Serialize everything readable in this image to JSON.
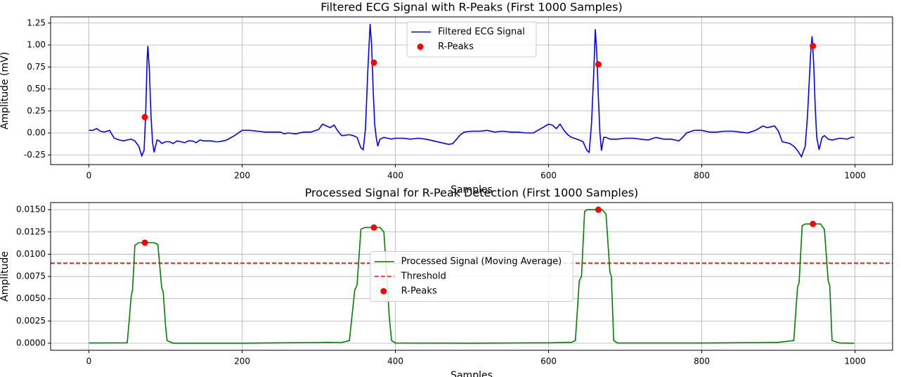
{
  "chart_data": [
    {
      "type": "line",
      "title": "Filtered ECG Signal with R-Peaks (First 1000 Samples)",
      "xlabel": "Samples",
      "ylabel": "Amplitude (mV)",
      "xlim": [
        -50,
        1049
      ],
      "ylim": [
        -0.36,
        1.32
      ],
      "xticks": [
        0,
        200,
        400,
        600,
        800,
        1000
      ],
      "yticks": [
        -0.25,
        {
          "value": 0,
          "label": "0.00"
        },
        0.25,
        {
          "value": 0.5,
          "label": "0.50"
        },
        0.75,
        {
          "value": 1,
          "label": "1.00"
        },
        1.25
      ],
      "grid": true,
      "legend": "upper center",
      "series": [
        {
          "name": "Filtered ECG Signal",
          "color": "#0000ff",
          "style": "line",
          "x": [
            0,
            5,
            10,
            15,
            20,
            27,
            33,
            40,
            45,
            50,
            55,
            60,
            65,
            69,
            72,
            74,
            76,
            77,
            79,
            81,
            83,
            85,
            87,
            89,
            92,
            95,
            100,
            105,
            110,
            115,
            120,
            125,
            130,
            135,
            140,
            145,
            150,
            160,
            165,
            170,
            175,
            180,
            190,
            200,
            210,
            220,
            230,
            240,
            250,
            255,
            260,
            270,
            280,
            290,
            300,
            305,
            310,
            315,
            320,
            325,
            330,
            340,
            345,
            350,
            355,
            358,
            361,
            364,
            367,
            369,
            371,
            373,
            375,
            377,
            380,
            385,
            390,
            395,
            400,
            410,
            420,
            430,
            440,
            450,
            460,
            470,
            475,
            485,
            490,
            500,
            510,
            520,
            530,
            540,
            550,
            560,
            570,
            580,
            590,
            600,
            605,
            610,
            615,
            620,
            625,
            630,
            640,
            645,
            650,
            653,
            656,
            659,
            661,
            663,
            665,
            667,
            669,
            672,
            675,
            680,
            690,
            700,
            710,
            720,
            730,
            740,
            750,
            760,
            770,
            775,
            780,
            790,
            800,
            810,
            820,
            830,
            840,
            850,
            860,
            870,
            880,
            885,
            890,
            895,
            900,
            905,
            915,
            920,
            925,
            930,
            935,
            938,
            942,
            944,
            946,
            948,
            950,
            953,
            957,
            960,
            965,
            970,
            980,
            990,
            995,
            999
          ],
          "values": [
            0.03,
            0.03,
            0.05,
            0.02,
            0.01,
            0.03,
            -0.06,
            -0.08,
            -0.09,
            -0.08,
            -0.07,
            -0.09,
            -0.15,
            -0.26,
            -0.2,
            0.2,
            0.85,
            0.99,
            0.7,
            0.2,
            -0.1,
            -0.22,
            -0.15,
            -0.08,
            -0.09,
            -0.12,
            -0.1,
            -0.1,
            -0.12,
            -0.09,
            -0.1,
            -0.11,
            -0.09,
            -0.09,
            -0.11,
            -0.08,
            -0.09,
            -0.09,
            -0.1,
            -0.1,
            -0.09,
            -0.08,
            -0.03,
            0.03,
            0.03,
            0.02,
            0.01,
            0.01,
            0.01,
            -0.01,
            0,
            -0.01,
            0.01,
            0.01,
            0.04,
            0.1,
            0.08,
            0.06,
            0.09,
            0.02,
            -0.03,
            -0.02,
            -0.03,
            -0.05,
            -0.17,
            -0.19,
            0.05,
            0.7,
            1.24,
            1,
            0.5,
            0.1,
            -0.05,
            -0.15,
            -0.07,
            -0.05,
            -0.06,
            -0.07,
            -0.06,
            -0.06,
            -0.07,
            -0.06,
            -0.07,
            -0.09,
            -0.11,
            -0.13,
            -0.12,
            -0.02,
            0.01,
            0.02,
            0.02,
            0.03,
            0.01,
            0.02,
            0.01,
            0.01,
            0,
            0,
            0.05,
            0.1,
            0.09,
            0.05,
            0.1,
            0.03,
            -0.02,
            -0.05,
            -0.08,
            -0.1,
            -0.2,
            -0.22,
            0.1,
            0.7,
            1.18,
            0.9,
            0.4,
            0,
            -0.2,
            -0.05,
            -0.05,
            -0.07,
            -0.07,
            -0.06,
            -0.06,
            -0.07,
            -0.08,
            -0.05,
            -0.07,
            -0.07,
            -0.09,
            -0.05,
            0,
            0.03,
            0.03,
            0.01,
            0.01,
            0.02,
            0.02,
            0.01,
            0,
            0.03,
            0.08,
            0.06,
            0.07,
            0.08,
            0.02,
            -0.1,
            -0.12,
            -0.15,
            -0.2,
            -0.27,
            -0.15,
            0.2,
            0.9,
            1.1,
            0.8,
            0.3,
            -0.05,
            -0.19,
            -0.05,
            -0.03,
            -0.07,
            -0.08,
            -0.06,
            -0.07,
            -0.05,
            -0.05
          ]
        },
        {
          "name": "R-Peaks",
          "color": "#ff0000",
          "style": "markers",
          "x": [
            73,
            372,
            665,
            945
          ],
          "values": [
            0.18,
            0.8,
            0.78,
            0.99
          ]
        }
      ]
    },
    {
      "type": "line",
      "title": "Processed Signal for R-Peak Detection (First 1000 Samples)",
      "xlabel": "Samples",
      "ylabel": "Amplitude",
      "xlim": [
        -50,
        1049
      ],
      "ylim": [
        -0.00079,
        0.0158
      ],
      "xticks": [
        0,
        200,
        400,
        600,
        800,
        1000
      ],
      "yticks": [
        {
          "value": 0,
          "label": "0.0000"
        },
        0.0025,
        {
          "value": 0.005,
          "label": "0.0050"
        },
        0.0075,
        {
          "value": 0.01,
          "label": "0.0100"
        },
        0.0125,
        {
          "value": 0.015,
          "label": "0.0150"
        }
      ],
      "grid": true,
      "legend": "center",
      "series": [
        {
          "name": "Processed Signal (Moving Average)",
          "color": "#008000",
          "style": "line",
          "x": [
            0,
            50,
            53,
            55,
            57,
            60,
            65,
            85,
            90,
            95,
            97,
            100,
            102,
            110,
            200,
            300,
            310,
            330,
            340,
            347,
            350,
            355,
            360,
            380,
            385,
            390,
            392,
            395,
            400,
            500,
            600,
            630,
            635,
            640,
            643,
            647,
            650,
            670,
            675,
            680,
            682,
            685,
            690,
            800,
            880,
            900,
            920,
            925,
            927,
            931,
            935,
            955,
            960,
            965,
            967,
            970,
            980,
            999
          ],
          "values": [
            3e-05,
            5e-05,
            0.003,
            0.0052,
            0.006,
            0.011,
            0.0113,
            0.0113,
            0.0111,
            0.0062,
            0.0058,
            0.002,
            0.0003,
            1e-05,
            1e-05,
            8e-05,
            0.0001,
            8e-05,
            0.0003,
            0.006,
            0.0065,
            0.0128,
            0.013,
            0.013,
            0.0125,
            0.006,
            0.003,
            0.0003,
            2e-05,
            1e-05,
            5e-05,
            0.0001,
            0.0003,
            0.007,
            0.0075,
            0.0148,
            0.015,
            0.015,
            0.0145,
            0.008,
            0.0075,
            0.0003,
            2e-05,
            2e-05,
            8e-05,
            0.0001,
            0.0003,
            0.0063,
            0.0068,
            0.0132,
            0.0134,
            0.0134,
            0.0128,
            0.007,
            0.0065,
            0.0003,
            2e-05,
            1e-05
          ]
        },
        {
          "name": "Threshold",
          "color": "#ff0000",
          "style": "hline",
          "value": 0.009
        },
        {
          "name": "R-Peaks",
          "color": "#ff0000",
          "style": "markers",
          "x": [
            73,
            372,
            665,
            945
          ],
          "values": [
            0.0113,
            0.013,
            0.015,
            0.0134
          ]
        }
      ]
    }
  ]
}
